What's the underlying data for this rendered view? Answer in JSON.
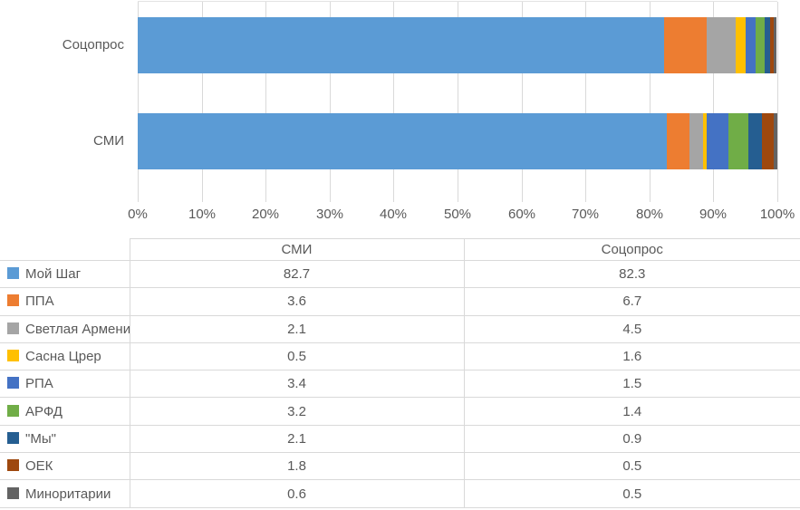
{
  "chart": {
    "rows": [
      {
        "label": "Соцопрос",
        "key": "socopros",
        "category_index": 1
      },
      {
        "label": "СМИ",
        "key": "smi",
        "category_index": 0
      }
    ]
  },
  "chart_data": {
    "type": "bar",
    "orientation": "horizontal",
    "stacked": true,
    "title": "",
    "xlabel": "",
    "ylabel": "",
    "grid": true,
    "xlim": [
      0,
      100
    ],
    "x_ticks": [
      "0%",
      "10%",
      "20%",
      "30%",
      "40%",
      "50%",
      "60%",
      "70%",
      "80%",
      "90%",
      "100%"
    ],
    "categories": [
      "СМИ",
      "Соцопрос"
    ],
    "series": [
      {
        "name": "Мой Шаг",
        "color": "#5B9BD5",
        "values": [
          82.7,
          82.3
        ]
      },
      {
        "name": "ППА",
        "color": "#ED7D31",
        "values": [
          3.6,
          6.7
        ]
      },
      {
        "name": "Светлая Армения",
        "color": "#A5A5A5",
        "values": [
          2.1,
          4.5
        ]
      },
      {
        "name": "Сасна Црер",
        "color": "#FFC000",
        "values": [
          0.5,
          1.6
        ]
      },
      {
        "name": "РПА",
        "color": "#4472C4",
        "values": [
          3.4,
          1.5
        ]
      },
      {
        "name": "АРФД",
        "color": "#70AD47",
        "values": [
          3.2,
          1.4
        ]
      },
      {
        "name": "\"Мы\"",
        "color": "#255E91",
        "values": [
          2.1,
          0.9
        ]
      },
      {
        "name": "ОЕК",
        "color": "#9E480E",
        "values": [
          1.8,
          0.5
        ]
      },
      {
        "name": "Миноритарии",
        "color": "#636363",
        "values": [
          0.6,
          0.5
        ]
      }
    ],
    "legend_position": "table-left-column"
  },
  "table": {
    "columns": [
      "",
      "СМИ",
      "Соцопрос"
    ]
  },
  "colors": {
    "text": "#595959",
    "gridline": "#D9D9D9",
    "table_border": "#D9D9D9"
  }
}
